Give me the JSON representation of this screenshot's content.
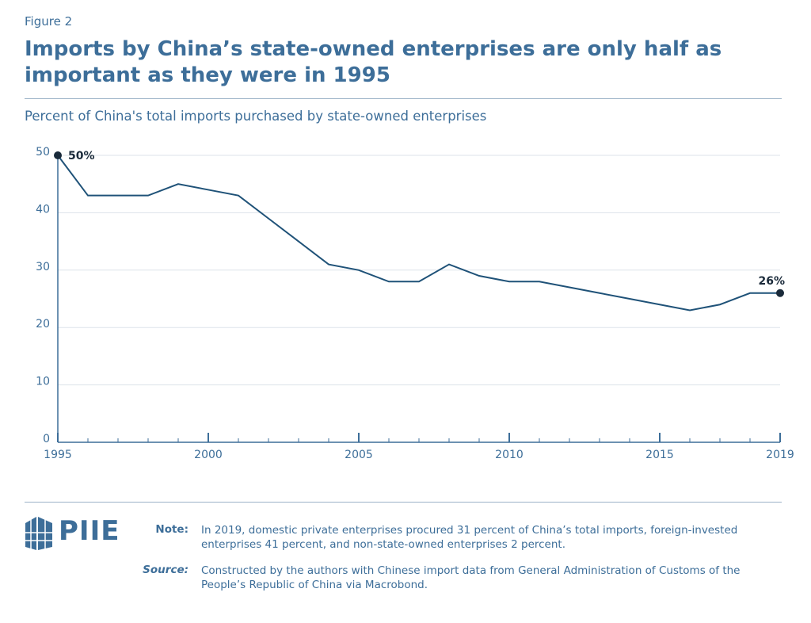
{
  "chart_data": {
    "type": "line",
    "figure_label": "Figure 2",
    "title": "Imports by China’s state-owned enterprises are only half as important as they were in 1995",
    "subtitle": "Percent of China's total imports purchased by state-owned enterprises",
    "x": [
      1995,
      1996,
      1997,
      1998,
      1999,
      2000,
      2001,
      2002,
      2003,
      2004,
      2005,
      2006,
      2007,
      2008,
      2009,
      2010,
      2011,
      2012,
      2013,
      2014,
      2015,
      2016,
      2017,
      2018,
      2019
    ],
    "series": [
      {
        "color": "#1f5278",
        "values": [
          50,
          43,
          43,
          43,
          45,
          44,
          43,
          39,
          35,
          31,
          30,
          28,
          28,
          31,
          29,
          28,
          28,
          27,
          26,
          25,
          24,
          23,
          24,
          26,
          26
        ],
        "value_labels": [
          "50%",
          null,
          null,
          null,
          null,
          null,
          null,
          null,
          null,
          null,
          null,
          null,
          null,
          null,
          null,
          null,
          null,
          null,
          null,
          null,
          null,
          null,
          null,
          null,
          "26%"
        ]
      }
    ],
    "xlim": [
      1995,
      2019
    ],
    "xticks": [
      1995,
      2000,
      2005,
      2010,
      2015,
      2019
    ],
    "ylim": [
      0,
      50
    ],
    "yticks": [
      0,
      10,
      20,
      30,
      40,
      50
    ],
    "grid": true
  },
  "footer": {
    "logo": "PIIE",
    "note_label": "Note:",
    "note": "In 2019, domestic private enterprises procured 31 percent of China’s total imports, foreign-invested enterprises 41 percent, and non-state-owned enterprises 2 percent.",
    "source_label": "Source:",
    "source": "Constructed by the authors with Chinese import data from General Administration of Customs of the People’s Republic of China via Macrobond."
  }
}
